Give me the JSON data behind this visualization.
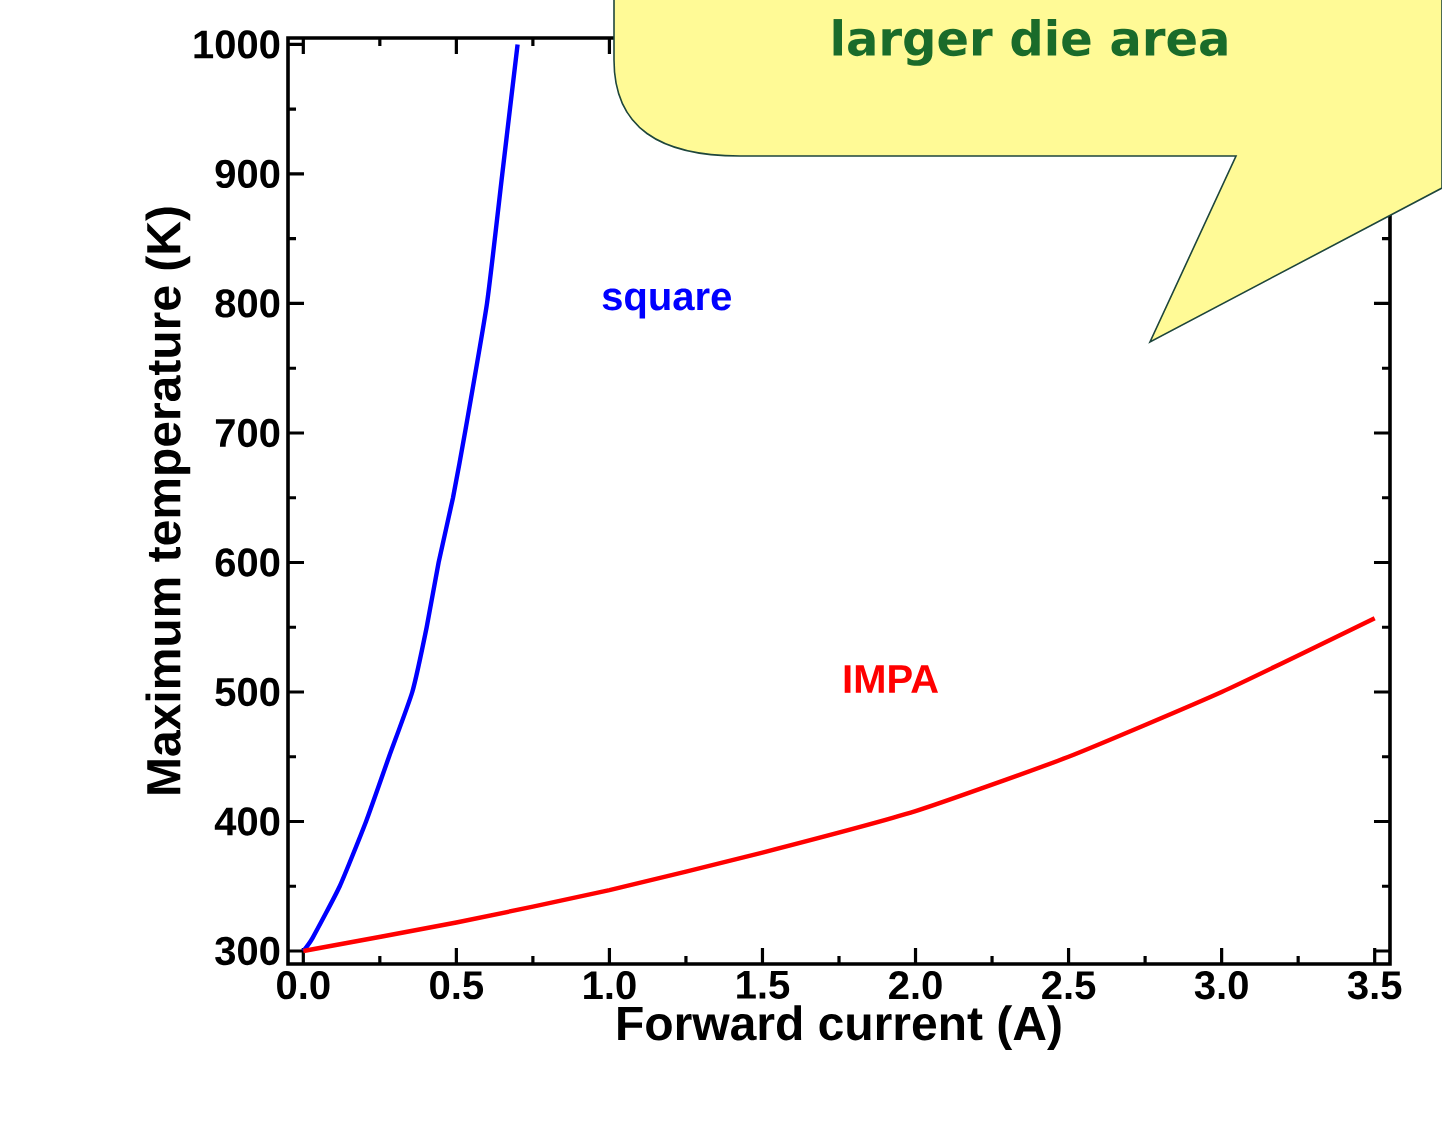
{
  "chart_data": {
    "type": "line",
    "xlabel": "Forward current (A)",
    "ylabel": "Maximum temperature (K)",
    "annotations": [
      "larger die area"
    ],
    "xlim": [
      -0.05,
      3.55
    ],
    "ylim": [
      290,
      1005
    ],
    "xticks": [
      {
        "value": 0,
        "label": "0.0"
      },
      {
        "value": 0.5,
        "label": "0.5"
      },
      {
        "value": 1,
        "label": "1.0"
      },
      {
        "value": 1.5,
        "label": "1.5"
      },
      {
        "value": 2,
        "label": "2.0"
      },
      {
        "value": 2.5,
        "label": "2.5"
      },
      {
        "value": 3,
        "label": "3.0"
      },
      {
        "value": 3.5,
        "label": "3.5"
      }
    ],
    "yticks": [
      300,
      400,
      500,
      600,
      700,
      800,
      900,
      1000
    ],
    "legend": false,
    "grid": false,
    "marker": "none",
    "line_style": "solid",
    "series": [
      {
        "name": "square",
        "color": "#0000ff",
        "x": [
          0,
          0.03,
          0.119,
          0.205,
          0.28,
          0.356,
          0.403,
          0.442,
          0.489,
          0.528,
          0.6,
          0.65,
          0.7
        ],
        "values": [
          300,
          310,
          350,
          400,
          450,
          500,
          550,
          600,
          650,
          700,
          800,
          900,
          1000
        ]
      },
      {
        "name": "IMPA",
        "color": "#ff0000",
        "x": [
          0,
          0.5,
          1,
          1.5,
          2,
          2.5,
          3,
          3.5
        ],
        "values": [
          300,
          322,
          347,
          376,
          408,
          450,
          500,
          557
        ]
      }
    ]
  }
}
